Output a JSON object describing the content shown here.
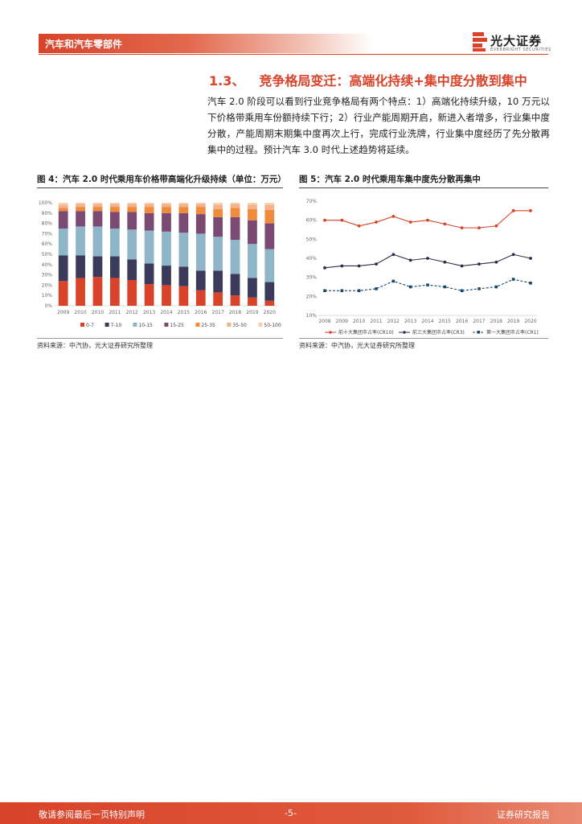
{
  "header": {
    "section": "汽车和汽车零部件",
    "logo_name": "光大证券",
    "logo_sub": "EVERBRIGHT SECURITIES"
  },
  "section": {
    "number": "1.3、",
    "title": "竞争格局变迁：高端化持续+集中度分散到集中",
    "paragraph": "汽车 2.0 阶段可以看到行业竞争格局有两个特点：1）高端化持续升级，10 万元以下价格带乘用车份额持续下行；2）行业产能周期开启，新进入者增多，行业集中度分散，产能周期末期集中度再次上行，完成行业洗牌，行业集中度经历了先分散再集中的过程。预计汽车 3.0 时代上述趋势将延续。"
  },
  "figures": [
    {
      "title": "图 4：汽车 2.0 时代乘用车价格带高端化升级持续（单位：万元）",
      "source": "资料来源：中汽协，光大证券研究所整理"
    },
    {
      "title": "图 5：汽车 2.0 时代乘用车集中度先分散再集中",
      "source": "资料来源：中汽协，光大证券研究所整理"
    }
  ],
  "colors": {
    "brand": "#d8432a",
    "bars": [
      "#d8432a",
      "#3c3a5a",
      "#8fb5c9",
      "#7b4a73",
      "#f08a3c",
      "#f3b28a",
      "#f5d1b0"
    ],
    "line_cr10": "#d8432a",
    "line_cr3": "#2f2c4e",
    "line_cr1": "#18486b"
  },
  "chart_data": [
    {
      "type": "bar",
      "stacked": true,
      "categories": [
        "2009",
        "2010",
        "2010",
        "2011",
        "2012",
        "2013",
        "2014",
        "2015",
        "2016",
        "2017",
        "2018",
        "2019",
        "2020"
      ],
      "series": [
        {
          "name": "0-7",
          "values": [
            24,
            27,
            28,
            27,
            25,
            21,
            20,
            19,
            15,
            13,
            10,
            8,
            5
          ]
        },
        {
          "name": "7-10",
          "values": [
            25,
            22,
            20,
            21,
            20,
            20,
            19,
            19,
            19,
            21,
            21,
            19,
            18
          ]
        },
        {
          "name": "10-15",
          "values": [
            26,
            28,
            29,
            27,
            29,
            32,
            33,
            33,
            36,
            33,
            33,
            33,
            32
          ]
        },
        {
          "name": "15-25",
          "values": [
            17,
            15,
            15,
            16,
            17,
            17,
            18,
            19,
            19,
            19,
            22,
            23,
            25
          ]
        },
        {
          "name": "25-35",
          "values": [
            3,
            4,
            4,
            5,
            5,
            6,
            6,
            6,
            7,
            8,
            9,
            11,
            13
          ]
        },
        {
          "name": "35-50",
          "values": [
            3,
            3,
            3,
            3,
            3,
            3,
            3,
            3,
            3,
            4,
            4,
            4,
            5
          ]
        },
        {
          "name": "50-100",
          "values": [
            2,
            1,
            1,
            1,
            1,
            1,
            1,
            1,
            1,
            2,
            1,
            2,
            2
          ]
        }
      ],
      "y_ticks": [
        "0%",
        "10%",
        "20%",
        "30%",
        "40%",
        "50%",
        "60%",
        "70%",
        "80%",
        "90%",
        "100%"
      ],
      "ylim": [
        0,
        100
      ],
      "legend": "bottom"
    },
    {
      "type": "line",
      "x": [
        "2008",
        "2009",
        "2010",
        "2011",
        "2012",
        "2013",
        "2014",
        "2015",
        "2016",
        "2017",
        "2018",
        "2019",
        "2020"
      ],
      "series": [
        {
          "name": "前十大集团市占率(CR10)",
          "values": [
            60,
            60,
            57,
            59,
            62,
            59,
            60,
            58,
            56,
            56,
            57,
            65,
            65
          ]
        },
        {
          "name": "前三大集团市占率(CR3)",
          "values": [
            35,
            36,
            36,
            37,
            42,
            39,
            40,
            38,
            36,
            37,
            38,
            42,
            40
          ]
        },
        {
          "name": "第一大集团市占率(CR1)",
          "values": [
            23,
            23,
            23,
            24,
            28,
            25,
            26,
            25,
            23,
            24,
            25,
            29,
            27
          ]
        }
      ],
      "y_ticks": [
        "10%",
        "20%",
        "30%",
        "40%",
        "50%",
        "60%",
        "70%"
      ],
      "ylim": [
        10,
        70
      ],
      "legend": "bottom"
    }
  ],
  "footer": {
    "left": "敬请参阅最后一页特别声明",
    "page": "-5-",
    "right": "证券研究报告"
  }
}
